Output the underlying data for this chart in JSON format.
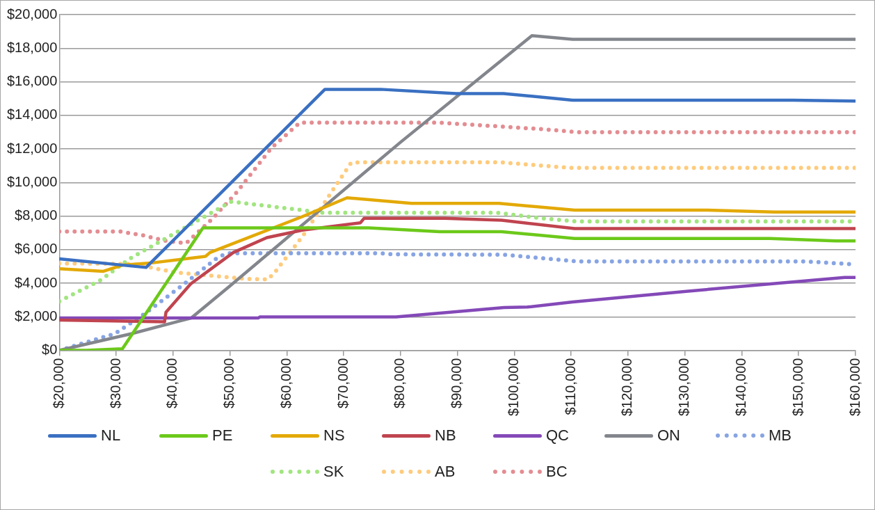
{
  "chart_data": {
    "type": "line",
    "xlim": [
      20000,
      160000
    ],
    "ylim": [
      0,
      20000
    ],
    "xticks": [
      {
        "value": 20000,
        "label": "$20,000"
      },
      {
        "value": 30000,
        "label": "$30,000"
      },
      {
        "value": 40000,
        "label": "$40,000"
      },
      {
        "value": 50000,
        "label": "$50,000"
      },
      {
        "value": 60000,
        "label": "$60,000"
      },
      {
        "value": 70000,
        "label": "$70,000"
      },
      {
        "value": 80000,
        "label": "$80,000"
      },
      {
        "value": 90000,
        "label": "$90,000"
      },
      {
        "value": 100000,
        "label": "$100,000"
      },
      {
        "value": 110000,
        "label": "$110,000"
      },
      {
        "value": 120000,
        "label": "$120,000"
      },
      {
        "value": 130000,
        "label": "$130,000"
      },
      {
        "value": 140000,
        "label": "$140,000"
      },
      {
        "value": 150000,
        "label": "$150,000"
      },
      {
        "value": 160000,
        "label": "$160,000"
      }
    ],
    "yticks": [
      {
        "value": 0,
        "label": "$0"
      },
      {
        "value": 2000,
        "label": "$2,000"
      },
      {
        "value": 4000,
        "label": "$4,000"
      },
      {
        "value": 6000,
        "label": "$6,000"
      },
      {
        "value": 8000,
        "label": "$8,000"
      },
      {
        "value": 10000,
        "label": "$10,000"
      },
      {
        "value": 12000,
        "label": "$12,000"
      },
      {
        "value": 14000,
        "label": "$14,000"
      },
      {
        "value": 16000,
        "label": "$16,000"
      },
      {
        "value": 18000,
        "label": "$18,000"
      },
      {
        "value": 20000,
        "label": "$20,000"
      }
    ],
    "grid": "y",
    "legend": "bottom",
    "marker": "none",
    "series": [
      {
        "name": "NL",
        "color": "#3a70c2",
        "line_style": "solid",
        "x": [
          20000,
          35250,
          66700,
          76500,
          89800,
          98100,
          110250,
          149000,
          160000
        ],
        "values": [
          5450,
          4940,
          15550,
          15550,
          15300,
          15300,
          14900,
          14900,
          14850
        ]
      },
      {
        "name": "PE",
        "color": "#6cc91a",
        "line_style": "solid",
        "x": [
          20000,
          24800,
          31100,
          45250,
          74400,
          86900,
          97750,
          110600,
          144900,
          156500,
          160000
        ],
        "values": [
          0,
          0,
          100,
          7300,
          7300,
          7070,
          7070,
          6670,
          6670,
          6520,
          6520
        ]
      },
      {
        "name": "NS",
        "color": "#e3a906",
        "line_style": "solid",
        "x": [
          20000,
          27750,
          31100,
          36500,
          45700,
          46500,
          62750,
          70600,
          81900,
          97300,
          110600,
          134000,
          145700,
          160000
        ],
        "values": [
          4860,
          4710,
          5080,
          5220,
          5600,
          5830,
          7970,
          9090,
          8760,
          8760,
          8350,
          8350,
          8240,
          8240
        ]
      },
      {
        "name": "NB",
        "color": "#c0444f",
        "line_style": "solid",
        "x": [
          20000,
          38500,
          38750,
          43100,
          50600,
          56500,
          62750,
          72950,
          73600,
          87750,
          97750,
          110600,
          160000
        ],
        "values": [
          1810,
          1700,
          2270,
          3960,
          5830,
          6720,
          7160,
          7600,
          7870,
          7870,
          7750,
          7260,
          7260
        ]
      },
      {
        "name": "QC",
        "color": "#8449b8",
        "line_style": "solid",
        "x": [
          20000,
          55000,
          55250,
          79200,
          98200,
          102300,
          110250,
          130250,
          158100,
          160000
        ],
        "values": [
          1930,
          1930,
          1990,
          1990,
          2550,
          2580,
          2880,
          3520,
          4340,
          4340
        ]
      },
      {
        "name": "ON",
        "color": "#83868c",
        "line_style": "solid",
        "x": [
          20000,
          32750,
          43200,
          50000,
          80000,
          103100,
          110250,
          160000
        ],
        "values": [
          0,
          1000,
          1930,
          3840,
          12400,
          18750,
          18530,
          18530
        ]
      },
      {
        "name": "MB",
        "color": "#87a4e3",
        "line_style": "dotted",
        "x": [
          20000,
          29800,
          35000,
          41700,
          48100,
          50000,
          76500,
          78600,
          98100,
          110900,
          151100,
          160000
        ],
        "values": [
          0,
          1000,
          2180,
          3890,
          5600,
          5790,
          5790,
          5720,
          5700,
          5300,
          5300,
          5120
        ]
      },
      {
        "name": "SK",
        "color": "#a1e57f",
        "line_style": "dotted",
        "x": [
          20000,
          27300,
          32300,
          37750,
          44800,
          50250,
          62300,
          66300,
          96900,
          104800,
          110900,
          160000
        ],
        "values": [
          2920,
          4190,
          5450,
          6490,
          7830,
          8860,
          8370,
          8200,
          8200,
          7870,
          7680,
          7680
        ]
      },
      {
        "name": "AB",
        "color": "#fecb7d",
        "line_style": "dotted",
        "x": [
          20000,
          32750,
          40700,
          52750,
          56700,
          58100,
          61900,
          63200,
          67750,
          71300,
          72700,
          97750,
          109800,
          160000
        ],
        "values": [
          5180,
          5150,
          4630,
          4260,
          4220,
          4740,
          6410,
          7000,
          9380,
          11170,
          11200,
          11200,
          10870,
          10870
        ]
      },
      {
        "name": "BC",
        "color": "#e38d92",
        "line_style": "dotted",
        "x": [
          20000,
          30700,
          34600,
          38600,
          42300,
          46900,
          51100,
          57300,
          62300,
          86500,
          104800,
          111100,
          160000
        ],
        "values": [
          7080,
          7080,
          6860,
          6530,
          6380,
          7830,
          9380,
          12060,
          13570,
          13570,
          13180,
          13000,
          13000
        ]
      }
    ]
  }
}
